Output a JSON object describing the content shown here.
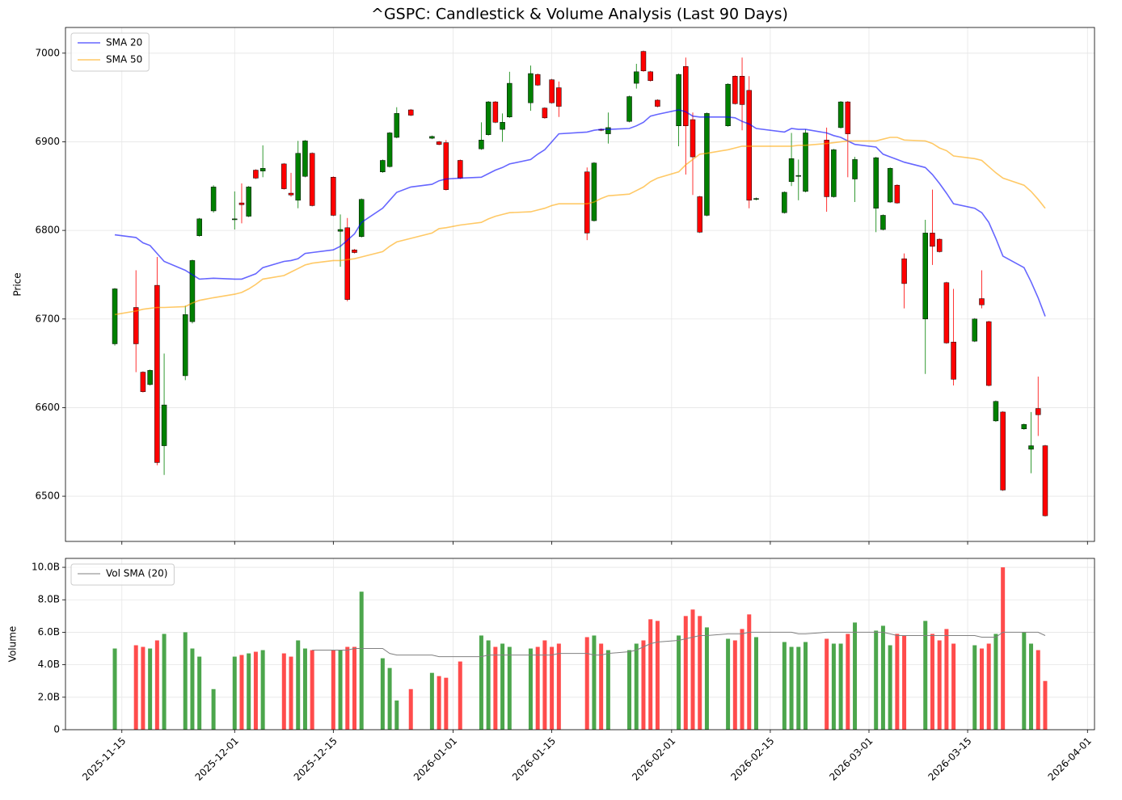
{
  "chart_data": [
    {
      "type": "candlestick",
      "title": "^GSPC: Candlestick & Volume Analysis (Last 90 Days)",
      "ylabel": "Price",
      "x": [
        "2025-11-14",
        "2025-11-17",
        "2025-11-18",
        "2025-11-19",
        "2025-11-20",
        "2025-11-21",
        "2025-11-24",
        "2025-11-25",
        "2025-11-26",
        "2025-11-28",
        "2025-12-01",
        "2025-12-02",
        "2025-12-03",
        "2025-12-04",
        "2025-12-05",
        "2025-12-08",
        "2025-12-09",
        "2025-12-10",
        "2025-12-11",
        "2025-12-12",
        "2025-12-15",
        "2025-12-16",
        "2025-12-17",
        "2025-12-18",
        "2025-12-19",
        "2025-12-22",
        "2025-12-23",
        "2025-12-24",
        "2025-12-26",
        "2025-12-29",
        "2025-12-30",
        "2025-12-31",
        "2026-01-02",
        "2026-01-05",
        "2026-01-06",
        "2026-01-07",
        "2026-01-08",
        "2026-01-09",
        "2026-01-12",
        "2026-01-13",
        "2026-01-14",
        "2026-01-15",
        "2026-01-16",
        "2026-01-20",
        "2026-01-21",
        "2026-01-22",
        "2026-01-23",
        "2026-01-26",
        "2026-01-27",
        "2026-01-28",
        "2026-01-29",
        "2026-01-30",
        "2026-02-02",
        "2026-02-03",
        "2026-02-04",
        "2026-02-05",
        "2026-02-06",
        "2026-02-09",
        "2026-02-10",
        "2026-02-11",
        "2026-02-12",
        "2026-02-13",
        "2026-02-17",
        "2026-02-18",
        "2026-02-19",
        "2026-02-20",
        "2026-02-23",
        "2026-02-24",
        "2026-02-25",
        "2026-02-26",
        "2026-02-27",
        "2026-03-02",
        "2026-03-03",
        "2026-03-04",
        "2026-03-05",
        "2026-03-06",
        "2026-03-09",
        "2026-03-10",
        "2026-03-11",
        "2026-03-12",
        "2026-03-13",
        "2026-03-16",
        "2026-03-17",
        "2026-03-18",
        "2026-03-19",
        "2026-03-20",
        "2026-03-23",
        "2026-03-24",
        "2026-03-25",
        "2026-03-26"
      ],
      "open": [
        6672,
        6713,
        6640,
        6626,
        6738,
        6557,
        6636,
        6697,
        6794,
        6822,
        6812,
        6831,
        6816,
        6868,
        6867,
        6875,
        6842,
        6834,
        6861,
        6887,
        6860,
        6799,
        6803,
        6778,
        6793,
        6866,
        6872,
        6905,
        6936,
        6904,
        6900,
        6899,
        6879,
        6892,
        6908,
        6945,
        6914,
        6928,
        6944,
        6976,
        6938,
        6970,
        6961,
        6866,
        6811,
        6914,
        6909,
        6923,
        6966,
        7002,
        6979,
        6947,
        6918,
        6985,
        6925,
        6838,
        6817,
        6918,
        6974,
        6974,
        6958,
        6835,
        6820,
        6855,
        6861,
        6844,
        6902,
        6838,
        6916,
        6945,
        6858,
        6825,
        6801,
        6832,
        6851,
        6768,
        6700,
        6797,
        6790,
        6741,
        6674,
        6675,
        6723,
        6697,
        6585,
        6595,
        6576,
        6553,
        6599,
        6557
      ],
      "high": [
        6735,
        6755,
        6641,
        6643,
        6770,
        6661,
        6715,
        6767,
        6814,
        6851,
        6844,
        6853,
        6850,
        6869,
        6896,
        6876,
        6865,
        6901,
        6902,
        6888,
        6861,
        6818,
        6814,
        6779,
        6836,
        6880,
        6911,
        6939,
        6937,
        6907,
        6901,
        6902,
        6880,
        6922,
        6946,
        6946,
        6932,
        6979,
        6986,
        6977,
        6939,
        6971,
        6968,
        6871,
        6877,
        6915,
        6933,
        6952,
        6988,
        7003,
        6980,
        6948,
        6977,
        6995,
        6933,
        6839,
        6933,
        6966,
        6975,
        6995,
        6974,
        6837,
        6844,
        6910,
        6880,
        6914,
        6916,
        6892,
        6946,
        6946,
        6883,
        6883,
        6818,
        6871,
        6852,
        6774,
        6812,
        6846,
        6791,
        6742,
        6734,
        6701,
        6755,
        6698,
        6608,
        6596,
        6582,
        6595,
        6635,
        6558
      ],
      "low": [
        6670,
        6640,
        6617,
        6625,
        6535,
        6524,
        6631,
        6695,
        6793,
        6820,
        6801,
        6808,
        6815,
        6858,
        6860,
        6846,
        6838,
        6825,
        6860,
        6827,
        6816,
        6759,
        6720,
        6774,
        6792,
        6865,
        6871,
        6904,
        6929,
        6903,
        6896,
        6845,
        6858,
        6891,
        6907,
        6921,
        6900,
        6927,
        6935,
        6963,
        6926,
        6943,
        6928,
        6789,
        6810,
        6912,
        6898,
        6922,
        6960,
        6979,
        6968,
        6939,
        6895,
        6863,
        6840,
        6797,
        6816,
        6917,
        6942,
        6913,
        6825,
        6834,
        6819,
        6850,
        6834,
        6843,
        6821,
        6837,
        6915,
        6860,
        6832,
        6798,
        6800,
        6831,
        6830,
        6712,
        6638,
        6761,
        6775,
        6672,
        6625,
        6674,
        6712,
        6624,
        6584,
        6506,
        6575,
        6526,
        6568,
        6477
      ],
      "close": [
        6734,
        6672,
        6618,
        6642,
        6538,
        6603,
        6705,
        6766,
        6813,
        6849,
        6813,
        6829,
        6849,
        6859,
        6870,
        6847,
        6840,
        6887,
        6901,
        6828,
        6817,
        6801,
        6722,
        6775,
        6835,
        6879,
        6910,
        6932,
        6930,
        6906,
        6897,
        6846,
        6859,
        6902,
        6945,
        6922,
        6922,
        6966,
        6977,
        6964,
        6927,
        6944,
        6940,
        6797,
        6876,
        6913,
        6916,
        6951,
        6979,
        6980,
        6969,
        6940,
        6976,
        6918,
        6883,
        6798,
        6932,
        6965,
        6943,
        6942,
        6834,
        6836,
        6843,
        6881,
        6862,
        6910,
        6838,
        6891,
        6945,
        6909,
        6880,
        6882,
        6817,
        6870,
        6831,
        6740,
        6797,
        6782,
        6776,
        6673,
        6632,
        6700,
        6716,
        6625,
        6607,
        6507,
        6581,
        6557,
        6592,
        6478
      ],
      "up_color": "#008000",
      "down_color": "#ff0000",
      "series": [
        {
          "name": "SMA 20",
          "color": "#0000ff",
          "values": [
            6795,
            6792,
            6786,
            6783,
            6774,
            6765,
            6755,
            6750,
            6745,
            6746,
            6745,
            6745,
            6748,
            6751,
            6758,
            6765,
            6766,
            6768,
            6774,
            6775,
            6778,
            6782,
            6789,
            6796,
            6809,
            6825,
            6834,
            6843,
            6849,
            6852,
            6856,
            6858,
            6859,
            6860,
            6864,
            6868,
            6871,
            6875,
            6880,
            6886,
            6891,
            6900,
            6909,
            6911,
            6913,
            6914,
            6914,
            6915,
            6918,
            6922,
            6929,
            6931,
            6936,
            6934,
            6929,
            6928,
            6928,
            6928,
            6927,
            6923,
            6920,
            6915,
            6911,
            6915,
            6914,
            6914,
            6910,
            6907,
            6905,
            6901,
            6897,
            6894,
            6886,
            6883,
            6880,
            6877,
            6871,
            6863,
            6853,
            6842,
            6830,
            6825,
            6820,
            6809,
            6791,
            6771,
            6758,
            6742,
            6724,
            6703
          ]
        },
        {
          "name": "SMA 50",
          "color": "#ffa500",
          "values": [
            6705,
            6709,
            6711,
            6712,
            6713,
            6713,
            6714,
            6718,
            6721,
            6724,
            6728,
            6730,
            6734,
            6739,
            6745,
            6749,
            6753,
            6757,
            6761,
            6763,
            6766,
            6766,
            6767,
            6768,
            6770,
            6776,
            6782,
            6787,
            6791,
            6797,
            6802,
            6803,
            6806,
            6809,
            6813,
            6816,
            6818,
            6820,
            6821,
            6823,
            6825,
            6828,
            6830,
            6830,
            6832,
            6836,
            6839,
            6841,
            6845,
            6849,
            6855,
            6859,
            6866,
            6874,
            6880,
            6886,
            6887,
            6891,
            6893,
            6895,
            6895,
            6895,
            6895,
            6895,
            6896,
            6896,
            6898,
            6899,
            6900,
            6901,
            6901,
            6901,
            6903,
            6905,
            6905,
            6902,
            6901,
            6898,
            6893,
            6890,
            6884,
            6881,
            6879,
            6872,
            6865,
            6859,
            6851,
            6844,
            6835,
            6825
          ]
        }
      ],
      "xlim": [
        "2025-11-07",
        "2026-04-02"
      ],
      "ylim": [
        6449,
        7029
      ],
      "yticks": [
        6500,
        6600,
        6700,
        6800,
        6900,
        7000
      ],
      "grid": true,
      "legend": "upper left"
    },
    {
      "type": "bar",
      "ylabel": "Volume",
      "values": [
        5.0,
        5.2,
        5.1,
        5.0,
        5.5,
        5.9,
        6.0,
        5.0,
        4.5,
        2.5,
        4.5,
        4.6,
        4.7,
        4.8,
        4.9,
        4.7,
        4.5,
        5.5,
        5.0,
        4.9,
        4.9,
        4.9,
        5.1,
        5.1,
        8.5,
        4.4,
        3.8,
        1.8,
        2.5,
        3.5,
        3.3,
        3.2,
        4.2,
        5.8,
        5.5,
        5.1,
        5.3,
        5.1,
        5.0,
        5.1,
        5.5,
        5.1,
        5.3,
        5.7,
        5.8,
        5.3,
        4.9,
        4.9,
        5.3,
        5.5,
        6.8,
        6.7,
        5.8,
        7.0,
        7.4,
        7.0,
        6.3,
        5.6,
        5.5,
        6.2,
        7.1,
        5.7,
        5.4,
        5.1,
        5.1,
        5.4,
        5.6,
        5.3,
        5.3,
        5.9,
        6.6,
        6.1,
        6.4,
        5.2,
        5.9,
        5.8,
        6.7,
        5.9,
        5.5,
        6.2,
        5.3,
        5.2,
        5.0,
        5.3,
        5.9,
        10.0,
        6.0,
        5.3,
        4.9,
        3.0
      ],
      "up_color": "#4ca64c",
      "down_color": "#ff4c4c",
      "series": [
        {
          "name": "Vol SMA (20)",
          "color": "#808080",
          "values": [
            null,
            null,
            null,
            null,
            null,
            null,
            null,
            null,
            null,
            null,
            null,
            null,
            null,
            null,
            null,
            null,
            null,
            null,
            null,
            4.9,
            4.9,
            4.9,
            4.9,
            5.0,
            5.0,
            5.0,
            4.7,
            4.6,
            4.6,
            4.6,
            4.5,
            4.5,
            4.5,
            4.5,
            4.6,
            4.6,
            4.6,
            4.6,
            4.6,
            4.6,
            4.6,
            4.6,
            4.7,
            4.7,
            4.6,
            4.6,
            4.7,
            4.8,
            4.9,
            5.1,
            5.3,
            5.4,
            5.5,
            5.6,
            5.7,
            5.8,
            5.8,
            5.9,
            5.9,
            5.9,
            6.0,
            6.0,
            6.0,
            6.0,
            5.9,
            5.9,
            6.0,
            6.0,
            6.0,
            6.0,
            6.0,
            6.0,
            6.0,
            5.9,
            5.8,
            5.8,
            5.8,
            5.8,
            5.8,
            5.8,
            5.8,
            5.8,
            5.7,
            5.7,
            5.7,
            6.0,
            6.0,
            6.0,
            6.0,
            5.8
          ]
        }
      ],
      "ylim": [
        0,
        10.55
      ],
      "yticks": [
        0,
        {
          "value": 2,
          "label": "2.0B"
        },
        {
          "value": 4,
          "label": "4.0B"
        },
        {
          "value": 6,
          "label": "6.0B"
        },
        {
          "value": 8,
          "label": "8.0B"
        },
        {
          "value": 10,
          "label": "10.0B"
        }
      ],
      "xticks": [
        "2025-11-15",
        "2025-12-01",
        "2025-12-15",
        "2026-01-01",
        "2026-01-15",
        "2026-02-01",
        "2026-02-15",
        "2026-03-01",
        "2026-03-15",
        "2026-04-01"
      ],
      "grid": true,
      "legend": "upper left"
    }
  ]
}
